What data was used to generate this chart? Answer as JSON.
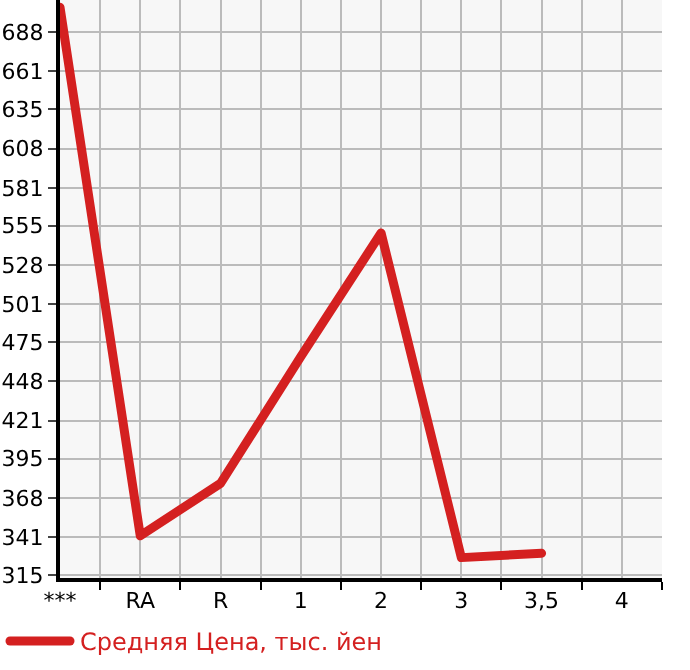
{
  "chart_data": {
    "type": "line",
    "categories": [
      "***",
      "RA",
      "R",
      "1",
      "2",
      "3",
      "3,5",
      "4"
    ],
    "series": [
      {
        "name": "Средняя Цена, тыс. йен",
        "color": "#d42020",
        "values": [
          705,
          342,
          378,
          465,
          550,
          327,
          330,
          null
        ]
      }
    ],
    "ylim": [
      313,
      710
    ],
    "yticks": [
      315,
      341,
      368,
      395,
      421,
      448,
      475,
      501,
      528,
      555,
      581,
      608,
      635,
      661,
      688
    ],
    "grid": true,
    "legend": "bottom",
    "marker": "none",
    "line_style": "solid"
  }
}
